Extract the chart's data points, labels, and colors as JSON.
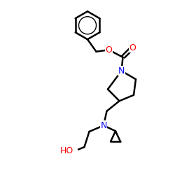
{
  "bg_color": "#ffffff",
  "atom_colors": {
    "O": "#ff0000",
    "N": "#0000ff",
    "HO": "#ff0000",
    "C": "#000000"
  },
  "bond_width": 1.8,
  "figsize": [
    2.5,
    2.5
  ],
  "dpi": 100
}
